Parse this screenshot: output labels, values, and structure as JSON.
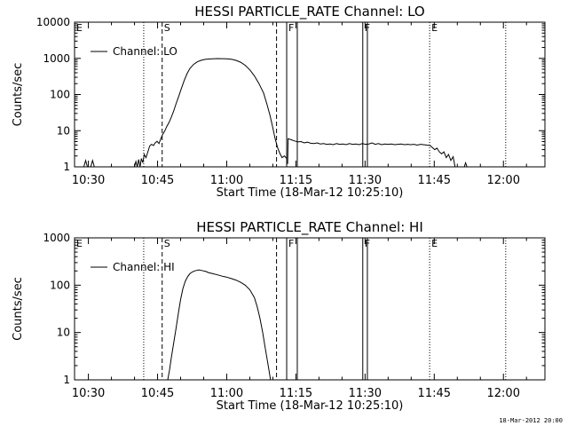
{
  "footer": {
    "timestamp": "18-Mar-2012 20:00"
  },
  "chart_data": [
    {
      "type": "line",
      "title": "HESSI PARTICLE_RATE Channel: LO",
      "xlabel": "Start Time (18-Mar-12 10:25:10)",
      "ylabel": "Counts/sec",
      "yscale": "log",
      "ylim": [
        1,
        10000
      ],
      "xlim_minutes": [
        -3,
        99
      ],
      "x_ticks": [
        {
          "label": "10:30",
          "min": 0
        },
        {
          "label": "10:45",
          "min": 15
        },
        {
          "label": "11:00",
          "min": 30
        },
        {
          "label": "11:15",
          "min": 45
        },
        {
          "label": "11:30",
          "min": 60
        },
        {
          "label": "11:45",
          "min": 75
        },
        {
          "label": "12:00",
          "min": 90
        }
      ],
      "y_ticks": [
        {
          "label": "1",
          "v": 1
        },
        {
          "label": "10",
          "v": 10
        },
        {
          "label": "100",
          "v": 100
        },
        {
          "label": "1000",
          "v": 1000
        },
        {
          "label": "10000",
          "v": 10000
        }
      ],
      "legend": {
        "label": "Channel: LO",
        "placement": "top-left"
      },
      "markers": [
        {
          "label": "E",
          "min": -3,
          "style": "dotted"
        },
        {
          "label": "",
          "min": 12,
          "style": "dotted"
        },
        {
          "label": "S",
          "min": 16,
          "style": "dashed"
        },
        {
          "label": "",
          "min": 40.8,
          "style": "dashed"
        },
        {
          "label": "F",
          "min": 43,
          "style": "solid"
        },
        {
          "label": "",
          "min": 45.3,
          "style": "solid"
        },
        {
          "label": "F",
          "min": 59.5,
          "style": "solid"
        },
        {
          "label": "",
          "min": 60.5,
          "style": "solid"
        },
        {
          "label": "E",
          "min": 74,
          "style": "dotted"
        },
        {
          "label": "",
          "min": 90.5,
          "style": "dotted"
        }
      ],
      "series": [
        {
          "name": "Channel: LO",
          "segments": [
            [
              [
                -1,
                1
              ],
              [
                -0.6,
                1.5
              ],
              [
                -0.2,
                1
              ]
            ],
            [
              [
                0.5,
                1
              ],
              [
                0.9,
                1.5
              ],
              [
                1.3,
                1
              ]
            ],
            [
              [
                10,
                1
              ],
              [
                10.3,
                1.4
              ],
              [
                10.6,
                1
              ],
              [
                10.9,
                1.6
              ],
              [
                11.2,
                1
              ],
              [
                11.5,
                1.7
              ],
              [
                11.8,
                1.3
              ],
              [
                12.1,
                2.2
              ],
              [
                12.5,
                1.8
              ],
              [
                12.9,
                2.6
              ],
              [
                13.3,
                3.8
              ],
              [
                13.7,
                4.2
              ],
              [
                14.1,
                3.9
              ],
              [
                14.5,
                4.6
              ],
              [
                14.9,
                5.1
              ],
              [
                15.3,
                4.4
              ],
              [
                15.7,
                6
              ],
              [
                16.1,
                7.8
              ],
              [
                16.6,
                10
              ],
              [
                17,
                13
              ],
              [
                17.5,
                17
              ],
              [
                18,
                24
              ],
              [
                18.5,
                35
              ],
              [
                19,
                55
              ],
              [
                19.6,
                90
              ],
              [
                20.2,
                150
              ],
              [
                20.8,
                250
              ],
              [
                21.4,
                380
              ],
              [
                22,
                520
              ],
              [
                22.8,
                680
              ],
              [
                23.6,
                800
              ],
              [
                24.4,
                880
              ],
              [
                25.2,
                930
              ],
              [
                26,
                960
              ],
              [
                27,
                975
              ],
              [
                28,
                985
              ],
              [
                29,
                980
              ],
              [
                30,
                970
              ],
              [
                31,
                940
              ],
              [
                32,
                880
              ],
              [
                33,
                780
              ],
              [
                34,
                640
              ],
              [
                35,
                480
              ],
              [
                36,
                330
              ],
              [
                37,
                200
              ],
              [
                38,
                110
              ],
              [
                38.7,
                55
              ],
              [
                39.4,
                26
              ],
              [
                40,
                12
              ],
              [
                40.5,
                6
              ],
              [
                41,
                3.5
              ],
              [
                41.5,
                2.4
              ],
              [
                42,
                1.8
              ],
              [
                42.5,
                2
              ],
              [
                43,
                1.7
              ]
            ],
            [
              [
                43.2,
                1.2
              ],
              [
                43.3,
                6
              ],
              [
                44,
                5.6
              ],
              [
                44.7,
                5.2
              ],
              [
                45.4,
                4.9
              ],
              [
                46.1,
                5
              ],
              [
                46.8,
                4.6
              ],
              [
                47.5,
                4.8
              ],
              [
                48.2,
                4.5
              ],
              [
                48.9,
                4.4
              ],
              [
                49.6,
                4.6
              ],
              [
                50.3,
                4.3
              ],
              [
                51,
                4.4
              ],
              [
                51.7,
                4.2
              ],
              [
                52.4,
                4.3
              ],
              [
                53.1,
                4.1
              ],
              [
                53.8,
                4.4
              ],
              [
                54.5,
                4.2
              ],
              [
                55.2,
                4.3
              ],
              [
                55.9,
                4.1
              ],
              [
                56.6,
                4.4
              ],
              [
                57.3,
                4.2
              ],
              [
                58,
                4.3
              ],
              [
                58.7,
                4.1
              ],
              [
                59.4,
                4.4
              ],
              [
                60.1,
                4.2
              ],
              [
                60.8,
                4.3
              ],
              [
                61.5,
                4.6
              ],
              [
                62.2,
                4.2
              ],
              [
                62.9,
                4.4
              ],
              [
                63.6,
                4.1
              ],
              [
                64.3,
                4.3
              ],
              [
                65,
                4.2
              ],
              [
                65.7,
                4.3
              ],
              [
                66.4,
                4.1
              ],
              [
                67.1,
                4.2
              ],
              [
                67.8,
                4.3
              ],
              [
                68.5,
                4.1
              ],
              [
                69.2,
                4.2
              ],
              [
                69.9,
                4.1
              ],
              [
                70.6,
                4.2
              ],
              [
                71.3,
                4
              ],
              [
                72,
                4.2
              ],
              [
                72.7,
                4.1
              ],
              [
                73.4,
                4
              ],
              [
                74.1,
                3.9
              ],
              [
                74.6,
                3.4
              ],
              [
                75.1,
                3
              ],
              [
                75.6,
                3.3
              ],
              [
                76.1,
                2.6
              ],
              [
                76.6,
                2.3
              ],
              [
                77.1,
                2.6
              ],
              [
                77.6,
                1.8
              ],
              [
                78.1,
                2.2
              ],
              [
                78.6,
                1.5
              ],
              [
                79.1,
                1.9
              ],
              [
                79.5,
                1
              ]
            ],
            [
              [
                81.5,
                1
              ],
              [
                81.8,
                1.3
              ],
              [
                82.1,
                1
              ]
            ]
          ]
        }
      ]
    },
    {
      "type": "line",
      "title": "HESSI PARTICLE_RATE Channel: HI",
      "xlabel": "Start Time (18-Mar-12 10:25:10)",
      "ylabel": "Counts/sec",
      "yscale": "log",
      "ylim": [
        1,
        1000
      ],
      "xlim_minutes": [
        -3,
        99
      ],
      "x_ticks": [
        {
          "label": "10:30",
          "min": 0
        },
        {
          "label": "10:45",
          "min": 15
        },
        {
          "label": "11:00",
          "min": 30
        },
        {
          "label": "11:15",
          "min": 45
        },
        {
          "label": "11:30",
          "min": 60
        },
        {
          "label": "11:45",
          "min": 75
        },
        {
          "label": "12:00",
          "min": 90
        }
      ],
      "y_ticks": [
        {
          "label": "1",
          "v": 1
        },
        {
          "label": "10",
          "v": 10
        },
        {
          "label": "100",
          "v": 100
        },
        {
          "label": "1000",
          "v": 1000
        }
      ],
      "legend": {
        "label": "Channel: HI",
        "placement": "top-left"
      },
      "markers": [
        {
          "label": "E",
          "min": -3,
          "style": "dotted"
        },
        {
          "label": "",
          "min": 12,
          "style": "dotted"
        },
        {
          "label": "S",
          "min": 16,
          "style": "dashed"
        },
        {
          "label": "",
          "min": 40.8,
          "style": "dashed"
        },
        {
          "label": "F",
          "min": 43,
          "style": "solid"
        },
        {
          "label": "",
          "min": 45.3,
          "style": "solid"
        },
        {
          "label": "F",
          "min": 59.5,
          "style": "solid"
        },
        {
          "label": "",
          "min": 60.5,
          "style": "solid"
        },
        {
          "label": "E",
          "min": 74,
          "style": "dotted"
        },
        {
          "label": "",
          "min": 90.5,
          "style": "dotted"
        }
      ],
      "series": [
        {
          "name": "Channel: HI",
          "segments": [
            [
              [
                17.2,
                1
              ],
              [
                17.6,
                1.6
              ],
              [
                18,
                3
              ],
              [
                18.5,
                6
              ],
              [
                19,
                12
              ],
              [
                19.5,
                25
              ],
              [
                20,
                50
              ],
              [
                20.5,
                85
              ],
              [
                21,
                120
              ],
              [
                21.5,
                150
              ],
              [
                22,
                175
              ],
              [
                22.5,
                190
              ],
              [
                23,
                200
              ],
              [
                23.5,
                205
              ],
              [
                24,
                210
              ],
              [
                24.5,
                205
              ],
              [
                25,
                200
              ],
              [
                25.5,
                195
              ],
              [
                26,
                185
              ],
              [
                27,
                175
              ],
              [
                28,
                165
              ],
              [
                29,
                155
              ],
              [
                30,
                148
              ],
              [
                31,
                138
              ],
              [
                32,
                128
              ],
              [
                33,
                115
              ],
              [
                34,
                100
              ],
              [
                35,
                80
              ],
              [
                36,
                55
              ],
              [
                36.6,
                35
              ],
              [
                37.2,
                20
              ],
              [
                37.8,
                10
              ],
              [
                38.3,
                5
              ],
              [
                38.8,
                2.6
              ],
              [
                39.2,
                1.5
              ],
              [
                39.5,
                1
              ]
            ]
          ]
        }
      ]
    }
  ]
}
